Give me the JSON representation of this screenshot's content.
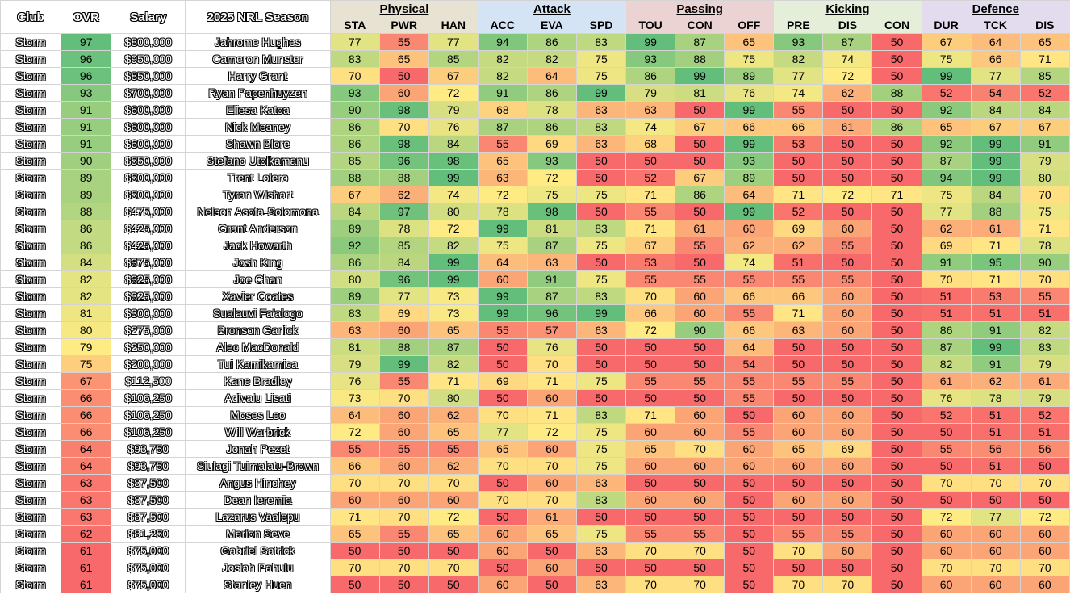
{
  "headers": {
    "club": "Club",
    "ovr": "OVR",
    "salary": "Salary",
    "season": "2025 NRL Season",
    "groups": [
      {
        "name": "Physical",
        "color": "#e7e2d2",
        "subs": [
          "STA",
          "PWR",
          "HAN"
        ]
      },
      {
        "name": "Attack",
        "color": "#d4e4f4",
        "subs": [
          "ACC",
          "EVA",
          "SPD"
        ]
      },
      {
        "name": "Passing",
        "color": "#ebd3d3",
        "subs": [
          "TOU",
          "CON",
          "OFF"
        ]
      },
      {
        "name": "Kicking",
        "color": "#e4eed9",
        "subs": [
          "PRE",
          "DIS",
          "CON"
        ]
      },
      {
        "name": "Defence",
        "color": "#e3dbee",
        "subs": [
          "DUR",
          "TCK",
          "DIS"
        ]
      }
    ]
  },
  "rows": [
    {
      "club": "Storm",
      "ovr": 97,
      "salary": "$800,000",
      "name": "Jahrome Hughes",
      "stats": [
        77,
        55,
        77,
        94,
        86,
        83,
        99,
        87,
        65,
        93,
        87,
        50,
        67,
        64,
        65
      ]
    },
    {
      "club": "Storm",
      "ovr": 96,
      "salary": "$950,000",
      "name": "Cameron Munster",
      "stats": [
        83,
        65,
        85,
        82,
        82,
        75,
        93,
        88,
        75,
        82,
        74,
        50,
        75,
        66,
        71
      ]
    },
    {
      "club": "Storm",
      "ovr": 96,
      "salary": "$850,000",
      "name": "Harry Grant",
      "stats": [
        70,
        50,
        67,
        82,
        64,
        75,
        86,
        99,
        89,
        77,
        72,
        50,
        99,
        77,
        85
      ]
    },
    {
      "club": "Storm",
      "ovr": 93,
      "salary": "$700,000",
      "name": "Ryan Papenhuyzen",
      "stats": [
        93,
        60,
        72,
        91,
        86,
        99,
        79,
        81,
        76,
        74,
        62,
        88,
        52,
        54,
        52
      ]
    },
    {
      "club": "Storm",
      "ovr": 91,
      "salary": "$600,000",
      "name": "Eliesa Katoa",
      "stats": [
        90,
        98,
        79,
        68,
        78,
        63,
        63,
        50,
        99,
        55,
        50,
        50,
        92,
        84,
        84
      ]
    },
    {
      "club": "Storm",
      "ovr": 91,
      "salary": "$600,000",
      "name": "Nick Meaney",
      "stats": [
        86,
        70,
        76,
        87,
        86,
        83,
        74,
        67,
        66,
        66,
        61,
        86,
        65,
        67,
        67
      ]
    },
    {
      "club": "Storm",
      "ovr": 91,
      "salary": "$600,000",
      "name": "Shawn Blore",
      "stats": [
        86,
        98,
        84,
        55,
        69,
        63,
        68,
        50,
        99,
        53,
        50,
        50,
        92,
        99,
        91
      ]
    },
    {
      "club": "Storm",
      "ovr": 90,
      "salary": "$550,000",
      "name": "Stefano Utoikamanu",
      "stats": [
        85,
        96,
        98,
        65,
        93,
        50,
        50,
        50,
        93,
        50,
        50,
        50,
        87,
        99,
        79
      ]
    },
    {
      "club": "Storm",
      "ovr": 89,
      "salary": "$500,000",
      "name": "Trent Loiero",
      "stats": [
        88,
        88,
        99,
        63,
        72,
        50,
        52,
        67,
        89,
        50,
        50,
        50,
        94,
        99,
        80
      ]
    },
    {
      "club": "Storm",
      "ovr": 89,
      "salary": "$500,000",
      "name": "Tyran Wishart",
      "stats": [
        67,
        62,
        74,
        72,
        75,
        75,
        71,
        86,
        64,
        71,
        72,
        71,
        75,
        84,
        70
      ]
    },
    {
      "club": "Storm",
      "ovr": 88,
      "salary": "$475,000",
      "name": "Nelson Asofa-Solomona",
      "stats": [
        84,
        97,
        80,
        78,
        98,
        50,
        55,
        50,
        99,
        52,
        50,
        50,
        77,
        88,
        75
      ]
    },
    {
      "club": "Storm",
      "ovr": 86,
      "salary": "$425,000",
      "name": "Grant Anderson",
      "stats": [
        89,
        78,
        72,
        99,
        81,
        83,
        71,
        61,
        60,
        69,
        60,
        50,
        62,
        61,
        71
      ]
    },
    {
      "club": "Storm",
      "ovr": 86,
      "salary": "$425,000",
      "name": "Jack Howarth",
      "stats": [
        92,
        85,
        82,
        75,
        87,
        75,
        67,
        55,
        62,
        62,
        55,
        50,
        69,
        71,
        78
      ]
    },
    {
      "club": "Storm",
      "ovr": 84,
      "salary": "$375,000",
      "name": "Josh King",
      "stats": [
        86,
        84,
        99,
        64,
        63,
        50,
        53,
        50,
        74,
        51,
        50,
        50,
        91,
        95,
        90
      ]
    },
    {
      "club": "Storm",
      "ovr": 82,
      "salary": "$325,000",
      "name": "Joe Chan",
      "stats": [
        80,
        96,
        99,
        60,
        91,
        75,
        55,
        55,
        55,
        55,
        55,
        50,
        70,
        71,
        70
      ]
    },
    {
      "club": "Storm",
      "ovr": 82,
      "salary": "$325,000",
      "name": "Xavier Coates",
      "stats": [
        89,
        77,
        73,
        99,
        87,
        83,
        70,
        60,
        66,
        66,
        60,
        50,
        51,
        53,
        55
      ]
    },
    {
      "club": "Storm",
      "ovr": 81,
      "salary": "$300,000",
      "name": "Sualauvi Fa'alogo",
      "stats": [
        83,
        69,
        73,
        99,
        96,
        99,
        66,
        60,
        55,
        71,
        60,
        50,
        51,
        51,
        51
      ]
    },
    {
      "club": "Storm",
      "ovr": 80,
      "salary": "$275,000",
      "name": "Bronson Garlick",
      "stats": [
        63,
        60,
        65,
        55,
        57,
        63,
        72,
        90,
        66,
        63,
        60,
        50,
        86,
        91,
        82
      ]
    },
    {
      "club": "Storm",
      "ovr": 79,
      "salary": "$250,000",
      "name": "Alec MacDonald",
      "stats": [
        81,
        88,
        87,
        50,
        76,
        50,
        50,
        50,
        64,
        50,
        50,
        50,
        87,
        99,
        83
      ]
    },
    {
      "club": "Storm",
      "ovr": 75,
      "salary": "$200,000",
      "name": "Tui Kamikamica",
      "stats": [
        79,
        99,
        82,
        50,
        70,
        50,
        50,
        50,
        54,
        50,
        50,
        50,
        82,
        91,
        79
      ]
    },
    {
      "club": "Storm",
      "ovr": 67,
      "salary": "$112,500",
      "name": "Kane Bradley",
      "stats": [
        76,
        55,
        71,
        69,
        71,
        75,
        55,
        55,
        55,
        55,
        55,
        50,
        61,
        62,
        61
      ]
    },
    {
      "club": "Storm",
      "ovr": 66,
      "salary": "$106,250",
      "name": "Adivalu Lisati",
      "stats": [
        73,
        70,
        80,
        50,
        60,
        50,
        50,
        50,
        55,
        50,
        50,
        50,
        76,
        78,
        79
      ]
    },
    {
      "club": "Storm",
      "ovr": 66,
      "salary": "$106,250",
      "name": "Moses Leo",
      "stats": [
        64,
        60,
        62,
        70,
        71,
        83,
        71,
        60,
        50,
        60,
        60,
        50,
        52,
        51,
        52
      ]
    },
    {
      "club": "Storm",
      "ovr": 66,
      "salary": "$106,250",
      "name": "Will Warbrick",
      "stats": [
        72,
        60,
        65,
        77,
        72,
        75,
        60,
        60,
        55,
        60,
        60,
        50,
        50,
        51,
        51
      ]
    },
    {
      "club": "Storm",
      "ovr": 64,
      "salary": "$93,750",
      "name": "Jonah Pezet",
      "stats": [
        55,
        55,
        55,
        65,
        60,
        75,
        65,
        70,
        60,
        65,
        69,
        50,
        55,
        56,
        56
      ]
    },
    {
      "club": "Storm",
      "ovr": 64,
      "salary": "$93,750",
      "name": "Siulagi Tuimalatu-Brown",
      "stats": [
        66,
        60,
        62,
        70,
        70,
        75,
        60,
        60,
        60,
        60,
        60,
        50,
        50,
        51,
        50
      ]
    },
    {
      "club": "Storm",
      "ovr": 63,
      "salary": "$87,500",
      "name": "Angus Hinchey",
      "stats": [
        70,
        70,
        70,
        50,
        60,
        63,
        50,
        50,
        50,
        50,
        50,
        50,
        70,
        70,
        70
      ]
    },
    {
      "club": "Storm",
      "ovr": 63,
      "salary": "$87,500",
      "name": "Dean Ieremia",
      "stats": [
        60,
        60,
        60,
        70,
        70,
        83,
        60,
        60,
        50,
        60,
        60,
        50,
        50,
        50,
        50
      ]
    },
    {
      "club": "Storm",
      "ovr": 63,
      "salary": "$87,500",
      "name": "Lazarus Vaalepu",
      "stats": [
        71,
        70,
        72,
        50,
        61,
        50,
        50,
        50,
        50,
        50,
        50,
        50,
        72,
        77,
        72
      ]
    },
    {
      "club": "Storm",
      "ovr": 62,
      "salary": "$81,250",
      "name": "Marion Seve",
      "stats": [
        65,
        55,
        65,
        60,
        65,
        75,
        55,
        55,
        50,
        55,
        55,
        50,
        60,
        60,
        60
      ]
    },
    {
      "club": "Storm",
      "ovr": 61,
      "salary": "$75,000",
      "name": "Gabriel Satrick",
      "stats": [
        50,
        50,
        50,
        60,
        50,
        63,
        70,
        70,
        50,
        70,
        60,
        50,
        60,
        60,
        60
      ]
    },
    {
      "club": "Storm",
      "ovr": 61,
      "salary": "$75,000",
      "name": "Josiah Pahulu",
      "stats": [
        70,
        70,
        70,
        50,
        60,
        50,
        50,
        50,
        50,
        50,
        50,
        50,
        70,
        70,
        70
      ]
    },
    {
      "club": "Storm",
      "ovr": 61,
      "salary": "$75,000",
      "name": "Stanley Huen",
      "stats": [
        50,
        50,
        50,
        60,
        50,
        63,
        70,
        70,
        50,
        70,
        70,
        50,
        60,
        60,
        60
      ]
    }
  ]
}
